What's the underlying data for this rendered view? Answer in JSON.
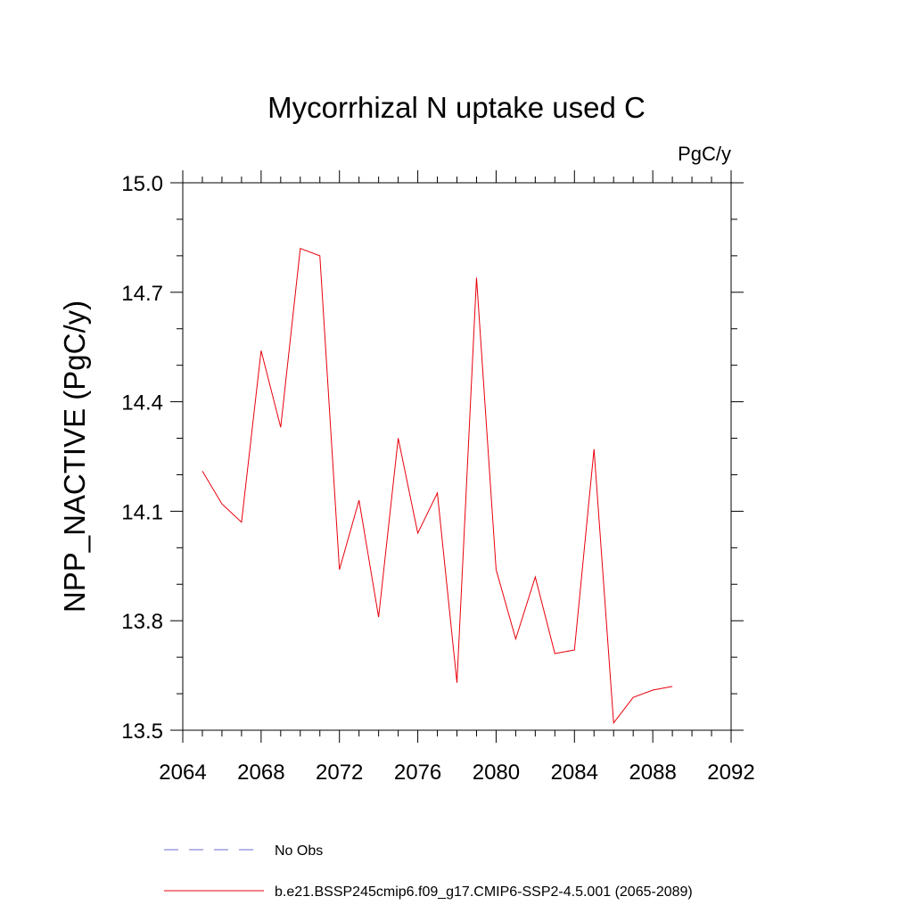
{
  "chart_data": {
    "type": "line",
    "title": "Mycorrhizal N uptake used C",
    "units": "PgC/y",
    "ylabel": "NPP_NACTIVE  (PgC/y)",
    "xlabel": "",
    "xlim": [
      2064,
      2092
    ],
    "ylim": [
      13.5,
      15.0
    ],
    "x_ticks": [
      2064,
      2068,
      2072,
      2076,
      2080,
      2084,
      2088,
      2092
    ],
    "x_tick_labels": [
      "2064",
      "2068",
      "2072",
      "2076",
      "2080",
      "2084",
      "2088",
      "2092"
    ],
    "x_minor_step": 1,
    "y_ticks": [
      13.5,
      13.8,
      14.1,
      14.4,
      14.7,
      15.0
    ],
    "y_tick_labels": [
      "13.5",
      "13.8",
      "14.1",
      "14.4",
      "14.7",
      "15.0"
    ],
    "y_minor_step": 0.1,
    "grid": false,
    "series": [
      {
        "name": "b.e21.BSSP245cmip6.f09_g17.CMIP6-SSP2-4.5.001 (2065-2089)",
        "color": "#e8000b",
        "x": [
          2065,
          2066,
          2067,
          2068,
          2069,
          2070,
          2071,
          2072,
          2073,
          2074,
          2075,
          2076,
          2077,
          2078,
          2079,
          2080,
          2081,
          2082,
          2083,
          2084,
          2085,
          2086,
          2087,
          2088,
          2089
        ],
        "values": [
          14.21,
          14.12,
          14.07,
          14.54,
          14.33,
          14.82,
          14.8,
          13.94,
          14.13,
          13.81,
          14.3,
          14.04,
          14.15,
          13.63,
          14.74,
          13.94,
          13.75,
          13.92,
          13.71,
          13.72,
          14.27,
          13.52,
          13.59,
          13.61,
          13.62
        ]
      }
    ],
    "legend": [
      {
        "label": "No Obs",
        "color": "#6b6bd6",
        "style": "dashed"
      },
      {
        "label": "b.e21.BSSP245cmip6.f09_g17.CMIP6-SSP2-4.5.001 (2065-2089)",
        "color": "#e8000b",
        "style": "solid"
      }
    ],
    "legend_position": "bottom"
  }
}
